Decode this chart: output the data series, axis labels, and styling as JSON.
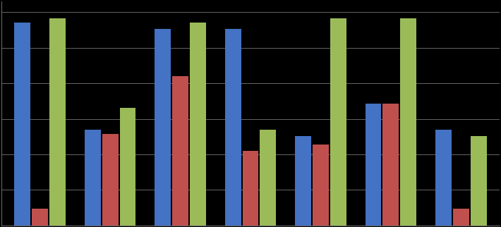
{
  "values": [
    [
      0.95,
      0.08,
      0.97
    ],
    [
      0.45,
      0.43,
      0.55
    ],
    [
      0.92,
      0.7,
      0.95
    ],
    [
      0.92,
      0.35,
      0.45
    ],
    [
      0.42,
      0.38,
      0.97
    ],
    [
      0.57,
      0.57,
      0.97
    ],
    [
      0.45,
      0.08,
      0.42
    ]
  ],
  "bar_colors": [
    "#4472C4",
    "#C0504D",
    "#9BBB59"
  ],
  "background_color": "#000000",
  "grid_color": "#666666",
  "ylim": [
    0,
    1.05
  ],
  "bar_width": 0.25,
  "n_gridlines": 7,
  "figsize": [
    7.1,
    3.22
  ],
  "dpi": 100
}
